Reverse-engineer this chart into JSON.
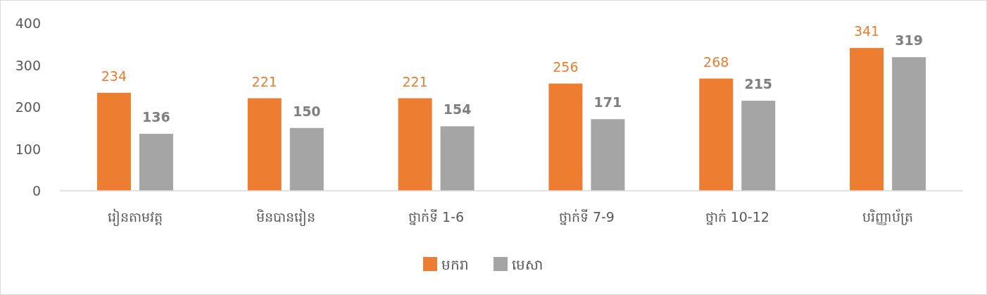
{
  "chart_data": {
    "type": "bar",
    "categories": [
      "រៀនតាមវត្ត",
      "មិនបានរៀន",
      "ថ្នាក់ទី 1-6",
      "ថ្នាក់ទី 7-9",
      "ថ្នាក់ 10-12",
      "បរិញ្ញាប័ត្រ"
    ],
    "series": [
      {
        "name": "មករា",
        "color": "#ed7d31",
        "values": [
          234,
          221,
          221,
          256,
          268,
          341
        ]
      },
      {
        "name": "មេសា",
        "color": "#a5a5a5",
        "values": [
          136,
          150,
          154,
          171,
          215,
          319
        ]
      }
    ],
    "ylim": [
      0,
      400
    ],
    "yticks": [
      0,
      100,
      200,
      300,
      400
    ],
    "grid": false,
    "legend": "bottom",
    "data_labels": true
  }
}
